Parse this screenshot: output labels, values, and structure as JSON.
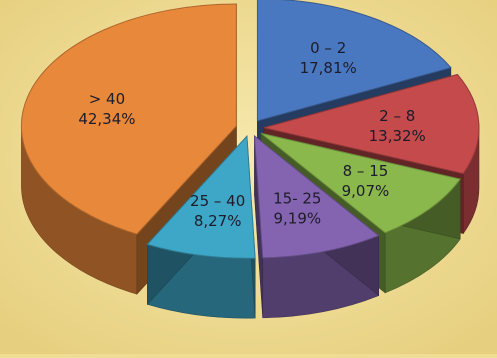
{
  "chart_data": {
    "type": "pie",
    "style": "3d-exploded",
    "slices": [
      {
        "label": "0 – 2",
        "value": 17.81,
        "display": "17,81%",
        "color": "#4a78c0"
      },
      {
        "label": "2 – 8",
        "value": 13.32,
        "display": "13,32%",
        "color": "#c44a4c"
      },
      {
        "label": "8 – 15",
        "value": 9.07,
        "display": "9,07%",
        "color": "#8ab84c"
      },
      {
        "label": "15- 25",
        "value": 9.19,
        "display": "9,19%",
        "color": "#8464b0"
      },
      {
        "label": "25 – 40",
        "value": 8.27,
        "display": "8,27%",
        "color": "#3ea6c6"
      },
      {
        "label": "> 40",
        "value": 42.34,
        "display": "42,34%",
        "color": "#e8883a"
      }
    ],
    "legend": "none",
    "background_color": "#f0dd94"
  }
}
